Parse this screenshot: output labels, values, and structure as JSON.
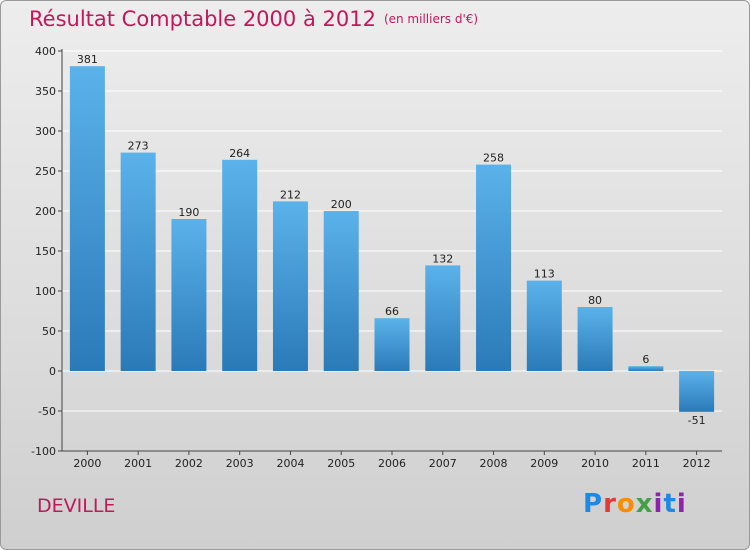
{
  "header": {
    "title": "Résultat Comptable 2000 à 2012",
    "subtitle": "(en milliers d'€)"
  },
  "footer": {
    "commune": "DEVILLE",
    "logo_text": "Proxiti"
  },
  "colors": {
    "title": "#c2185b",
    "bar_light": "#5bb2ea",
    "bar_dark": "#2a7ab8",
    "grid": "#ffffff",
    "logo_p": "#1e88e5",
    "logo_r": "#e53935",
    "logo_o": "#fb8c00",
    "logo_x": "#43a047",
    "logo_i": "#8e24aa",
    "logo_t": "#1e88e5"
  },
  "chart_data": {
    "type": "bar",
    "title": "Résultat Comptable 2000 à 2012",
    "xlabel": "",
    "ylabel": "",
    "ylim": [
      -100,
      400
    ],
    "yticks": [
      -100,
      -50,
      0,
      50,
      100,
      150,
      200,
      250,
      300,
      350,
      400
    ],
    "categories": [
      "2000",
      "2001",
      "2002",
      "2003",
      "2004",
      "2005",
      "2006",
      "2007",
      "2008",
      "2009",
      "2010",
      "2011",
      "2012"
    ],
    "values": [
      381,
      273,
      190,
      264,
      212,
      200,
      66,
      132,
      258,
      113,
      80,
      6,
      -51
    ],
    "grid": true
  }
}
